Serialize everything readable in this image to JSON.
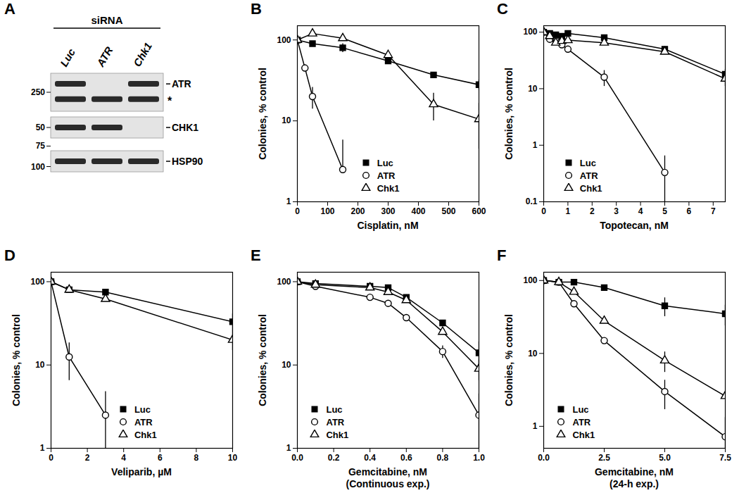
{
  "blot": {
    "title": "A",
    "header": "siRNA",
    "lanes": [
      "Luc",
      "ATR",
      "Chk1"
    ],
    "strips": [
      {
        "mw": [
          250
        ],
        "bands": [
          {
            "label": "ATR",
            "present": [
              true,
              false,
              true
            ]
          },
          {
            "label": "*",
            "present": [
              true,
              true,
              true
            ]
          }
        ]
      },
      {
        "mw": [
          50
        ],
        "bands": [
          {
            "label": "CHK1",
            "present": [
              true,
              true,
              false
            ]
          }
        ]
      },
      {
        "mw": [
          75,
          100
        ],
        "bands": [
          {
            "label": "HSP90",
            "present": [
              true,
              true,
              true
            ]
          }
        ]
      }
    ]
  },
  "chart_data": [
    {
      "type": "line",
      "title": "B",
      "xlabel": "Cisplatin, nM",
      "ylabel": "Colonies, % control",
      "xlim": [
        0,
        600
      ],
      "xticks": [
        0,
        100,
        200,
        300,
        400,
        500,
        600
      ],
      "ylim": [
        1,
        150
      ],
      "yticks": [
        1,
        10,
        100
      ],
      "log": "y",
      "legend": "lower left",
      "series": [
        {
          "name": "Luc",
          "color": "#000000",
          "marker": "square-filled",
          "x": [
            0,
            50,
            150,
            300,
            450,
            600
          ],
          "values": [
            100,
            90,
            80,
            55,
            37,
            28
          ],
          "errors": [
            null,
            null,
            10,
            null,
            null,
            4
          ]
        },
        {
          "name": "ATR",
          "color": "#000000",
          "marker": "circle-open",
          "x": [
            0,
            25,
            50,
            150
          ],
          "values": [
            100,
            45,
            20,
            2.5
          ],
          "errors": [
            null,
            null,
            6,
            3.3
          ]
        },
        {
          "name": "Chk1",
          "color": "#000000",
          "marker": "triangle-open",
          "x": [
            0,
            50,
            150,
            300,
            450,
            600
          ],
          "values": [
            100,
            120,
            105,
            65,
            16,
            10.5
          ],
          "errors": [
            null,
            null,
            null,
            null,
            6,
            6
          ]
        }
      ]
    },
    {
      "type": "line",
      "title": "C",
      "xlabel": "Topotecan, nM",
      "ylabel": "Colonies, % control",
      "xlim": [
        0,
        7.5
      ],
      "xticks": [
        0,
        1,
        2,
        3,
        4,
        5,
        6,
        7
      ],
      "ylim": [
        0.1,
        130
      ],
      "yticks": [
        0.1,
        1,
        10,
        100
      ],
      "log": "y",
      "legend": "lower left",
      "series": [
        {
          "name": "Luc",
          "color": "#000000",
          "marker": "square-filled",
          "x": [
            0,
            0.25,
            0.5,
            0.75,
            1,
            2.5,
            5,
            7.5
          ],
          "values": [
            100,
            95,
            90,
            85,
            95,
            80,
            50,
            18
          ],
          "errors": [
            null,
            null,
            null,
            null,
            null,
            null,
            null,
            4
          ]
        },
        {
          "name": "ATR",
          "color": "#000000",
          "marker": "circle-open",
          "x": [
            0,
            0.25,
            0.5,
            0.75,
            1,
            2.5,
            5
          ],
          "values": [
            100,
            75,
            70,
            60,
            50,
            16,
            0.33
          ],
          "errors": [
            null,
            null,
            null,
            null,
            null,
            5,
            0.32
          ]
        },
        {
          "name": "Chk1",
          "color": "#000000",
          "marker": "triangle-open",
          "x": [
            0,
            0.25,
            0.5,
            0.75,
            1,
            2.5,
            5,
            7.5
          ],
          "values": [
            100,
            85,
            65,
            70,
            72,
            65,
            45,
            15
          ],
          "errors": [
            null,
            null,
            null,
            null,
            null,
            null,
            null,
            4
          ]
        }
      ]
    },
    {
      "type": "line",
      "title": "D",
      "xlabel": "Veliparib, µM",
      "ylabel": "Colonies, % control",
      "xlim": [
        0,
        10
      ],
      "xticks": [
        0,
        2,
        4,
        6,
        8,
        10
      ],
      "ylim": [
        1,
        130
      ],
      "yticks": [
        1,
        10,
        100
      ],
      "log": "y",
      "legend": "lower left",
      "series": [
        {
          "name": "Luc",
          "color": "#000000",
          "marker": "square-filled",
          "x": [
            0,
            1,
            3,
            10
          ],
          "values": [
            100,
            80,
            75,
            33
          ],
          "errors": [
            null,
            null,
            null,
            8
          ]
        },
        {
          "name": "ATR",
          "color": "#000000",
          "marker": "circle-open",
          "x": [
            0,
            1,
            3
          ],
          "values": [
            100,
            12.5,
            2.5
          ],
          "errors": [
            null,
            6,
            2.3
          ]
        },
        {
          "name": "Chk1",
          "color": "#000000",
          "marker": "triangle-open",
          "x": [
            0,
            1,
            3,
            10
          ],
          "values": [
            100,
            80,
            62,
            20
          ],
          "errors": [
            null,
            null,
            null,
            5
          ]
        }
      ]
    },
    {
      "type": "line",
      "title": "E",
      "xlabel": "Gemcitabine, nM\n(Continuous exp.)",
      "ylabel": "Colonies, % control",
      "xlim": [
        0,
        1
      ],
      "xticks": [
        {
          "value": 0,
          "label": "0.0"
        },
        0.2,
        0.4,
        0.6,
        0.8,
        {
          "value": 1,
          "label": "1.0"
        }
      ],
      "ylim": [
        1,
        130
      ],
      "yticks": [
        1,
        10,
        100
      ],
      "log": "y",
      "legend": "lower left",
      "series": [
        {
          "name": "Luc",
          "color": "#000000",
          "marker": "square-filled",
          "x": [
            0,
            0.1,
            0.4,
            0.5,
            0.6,
            0.8,
            1.0
          ],
          "values": [
            100,
            95,
            88,
            85,
            65,
            32,
            14
          ],
          "errors": [
            null,
            null,
            null,
            null,
            null,
            null,
            5
          ]
        },
        {
          "name": "ATR",
          "color": "#000000",
          "marker": "circle-open",
          "x": [
            0,
            0.1,
            0.4,
            0.5,
            0.6,
            0.8,
            1.0
          ],
          "values": [
            100,
            88,
            65,
            55,
            37,
            14.5,
            2.5
          ],
          "errors": [
            null,
            null,
            null,
            null,
            null,
            2.5,
            2
          ]
        },
        {
          "name": "Chk1",
          "color": "#000000",
          "marker": "triangle-open",
          "x": [
            0,
            0.1,
            0.4,
            0.5,
            0.6,
            0.8,
            1.0
          ],
          "values": [
            100,
            92,
            85,
            75,
            60,
            25,
            9
          ],
          "errors": [
            null,
            null,
            null,
            null,
            null,
            null,
            2.5
          ]
        }
      ]
    },
    {
      "type": "line",
      "title": "F",
      "xlabel": "Gemcitabine, nM\n(24-h exp.)",
      "ylabel": "Colonies, % control",
      "xlim": [
        0,
        7.5
      ],
      "xticks": [
        {
          "value": 0,
          "label": "0.0"
        },
        2.5,
        {
          "value": 5,
          "label": "5.0"
        },
        7.5
      ],
      "ylim": [
        0.5,
        130
      ],
      "yticks": [
        1,
        10,
        100
      ],
      "log": "y",
      "legend": "lower left",
      "series": [
        {
          "name": "Luc",
          "color": "#000000",
          "marker": "square-filled",
          "x": [
            0,
            0.625,
            1.25,
            2.5,
            5,
            7.5
          ],
          "values": [
            100,
            95,
            95,
            80,
            45,
            35
          ],
          "errors": [
            null,
            null,
            null,
            null,
            13,
            11
          ]
        },
        {
          "name": "ATR",
          "color": "#000000",
          "marker": "circle-open",
          "x": [
            0,
            0.625,
            1.25,
            2.5,
            5,
            7.5
          ],
          "values": [
            100,
            95,
            48,
            15,
            3,
            0.72
          ],
          "errors": [
            null,
            null,
            null,
            null,
            1.3,
            0.6
          ]
        },
        {
          "name": "Chk1",
          "color": "#000000",
          "marker": "triangle-open",
          "x": [
            0,
            0.625,
            1.25,
            2.5,
            5,
            7.5
          ],
          "values": [
            100,
            95,
            70,
            28,
            8,
            2.6
          ],
          "errors": [
            null,
            null,
            null,
            null,
            2.5,
            null
          ]
        }
      ]
    }
  ]
}
